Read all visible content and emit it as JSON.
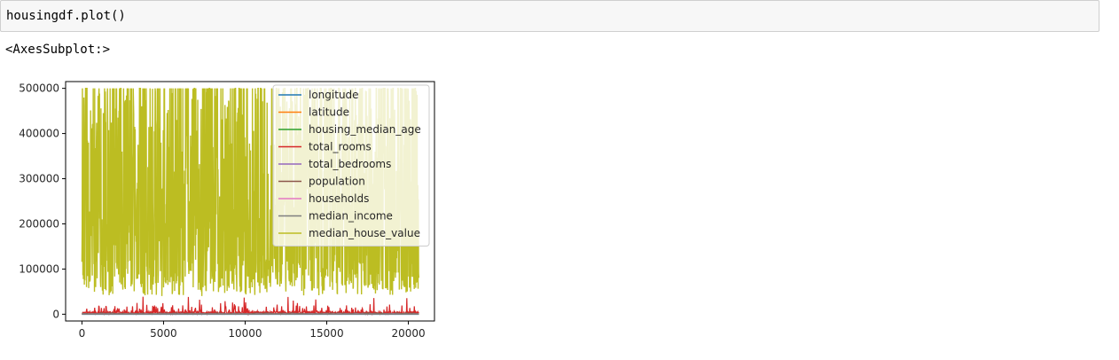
{
  "cell": {
    "code": "housingdf.plot()",
    "output_repr": "<AxesSubplot:>"
  },
  "chart_data": {
    "type": "line",
    "xlim": [
      -1000,
      21600
    ],
    "ylim": [
      -15000,
      515000
    ],
    "x_ticks": [
      0,
      5000,
      10000,
      15000,
      20000
    ],
    "y_ticks": [
      0,
      100000,
      200000,
      300000,
      400000,
      500000
    ],
    "x_tick_labels": [
      "0",
      "5000",
      "10000",
      "15000",
      "20000"
    ],
    "y_tick_labels": [
      "0",
      "100000",
      "200000",
      "300000",
      "400000",
      "500000"
    ],
    "legend_position": "top-right",
    "grid": false,
    "series": [
      {
        "name": "longitude",
        "color": "#1f77b4",
        "approx_value": -119.6
      },
      {
        "name": "latitude",
        "color": "#ff7f0e",
        "approx_value": 35.6
      },
      {
        "name": "housing_median_age",
        "color": "#2ca02c",
        "approx_value": 28.6
      },
      {
        "name": "total_rooms",
        "color": "#d62728",
        "approx_value": 2636,
        "approx_peak": 39320
      },
      {
        "name": "total_bedrooms",
        "color": "#9467bd",
        "approx_value": 537
      },
      {
        "name": "population",
        "color": "#8c564b",
        "approx_value": 1425
      },
      {
        "name": "households",
        "color": "#e377c2",
        "approx_value": 500
      },
      {
        "name": "median_income",
        "color": "#7f7f7f",
        "approx_value": 3.87
      },
      {
        "name": "median_house_value",
        "color": "#bcbd22",
        "approx_min": 15000,
        "approx_max": 500001,
        "x_extent": [
          0,
          20640
        ]
      }
    ]
  }
}
